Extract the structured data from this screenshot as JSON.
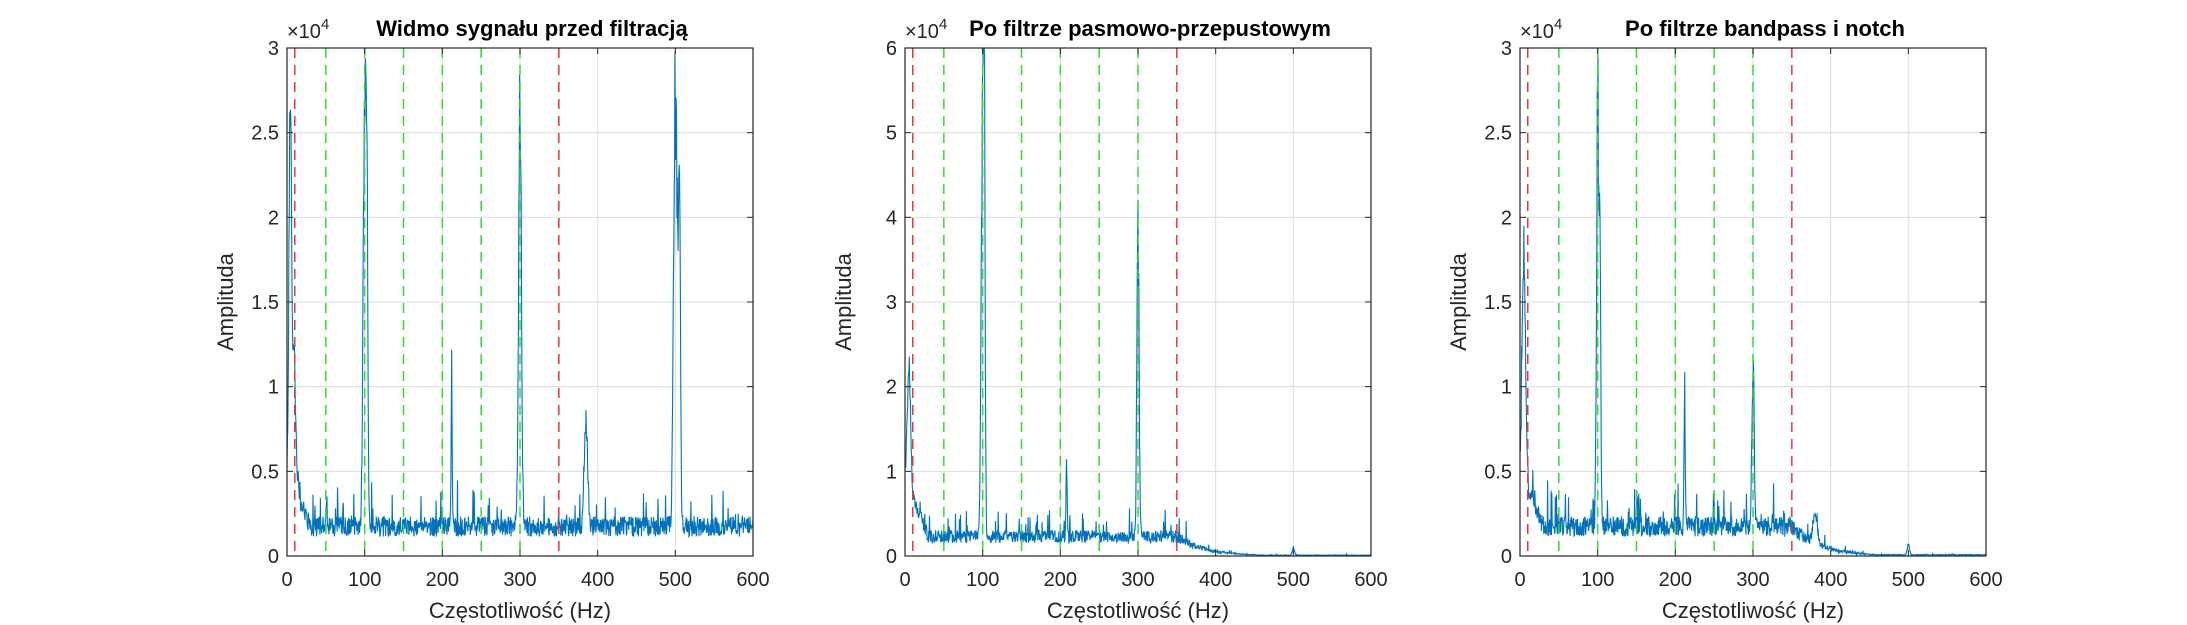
{
  "colors": {
    "signal": "#0072BD",
    "band_edge": "#E8333A",
    "harmonic": "#2DDC2D",
    "grid": "#DCDCDC",
    "axis": "#262626"
  },
  "chart_data": [
    {
      "type": "line",
      "title": "Widmo sygnału przed filtracją",
      "xlabel": "Częstotliwość (Hz)",
      "ylabel": "Amplituda",
      "y_exponent_label": "×10",
      "y_exponent": "4",
      "xlim": [
        0,
        600
      ],
      "ylim": [
        0,
        3
      ],
      "y_scale": 10000,
      "xticks": [
        "0",
        "100",
        "200",
        "300",
        "400",
        "500",
        "600"
      ],
      "yticks": [
        "0",
        "0.5",
        "1",
        "1.5",
        "2",
        "2.5",
        "3"
      ],
      "grid": true,
      "red_lines_x": [
        10,
        350
      ],
      "green_lines_x": [
        50,
        100,
        150,
        200,
        250,
        300
      ],
      "noise_floor": 0.15,
      "noise_amp": 0.12,
      "rolloff_above": null,
      "peaks": [
        {
          "x": 4,
          "y": 2.2,
          "w": 2
        },
        {
          "x": 8,
          "y": 1.0,
          "w": 4
        },
        {
          "x": 100,
          "y": 3.0,
          "w": 2.5
        },
        {
          "x": 103,
          "y": 2.1,
          "w": 1.5
        },
        {
          "x": 212,
          "y": 1.05,
          "w": 1
        },
        {
          "x": 300,
          "y": 3.0,
          "w": 2.5
        },
        {
          "x": 385,
          "y": 0.7,
          "w": 3
        },
        {
          "x": 500,
          "y": 3.0,
          "w": 3
        },
        {
          "x": 505,
          "y": 2.3,
          "w": 2
        }
      ]
    },
    {
      "type": "line",
      "title": "Po filtrze pasmowo-przepustowym",
      "xlabel": "Częstotliwość (Hz)",
      "ylabel": "Amplituda",
      "y_exponent_label": "×10",
      "y_exponent": "4",
      "xlim": [
        0,
        600
      ],
      "ylim": [
        0,
        6
      ],
      "y_scale": 10000,
      "xticks": [
        "0",
        "100",
        "200",
        "300",
        "400",
        "500",
        "600"
      ],
      "yticks": [
        "0",
        "1",
        "2",
        "3",
        "4",
        "5",
        "6"
      ],
      "grid": true,
      "red_lines_x": [
        10,
        350
      ],
      "green_lines_x": [
        50,
        100,
        150,
        200,
        250,
        300
      ],
      "noise_floor": 0.2,
      "noise_amp": 0.15,
      "rolloff_above": 350,
      "peaks": [
        {
          "x": 5,
          "y": 1.6,
          "w": 3
        },
        {
          "x": 100,
          "y": 5.6,
          "w": 2.5
        },
        {
          "x": 102,
          "y": 4.2,
          "w": 1.5
        },
        {
          "x": 208,
          "y": 1.05,
          "w": 1
        },
        {
          "x": 300,
          "y": 4.1,
          "w": 2
        },
        {
          "x": 500,
          "y": 0.1,
          "w": 2
        }
      ]
    },
    {
      "type": "line",
      "title": "Po filtrze bandpass i notch",
      "xlabel": "Częstotliwość (Hz)",
      "ylabel": "Amplituda",
      "y_exponent_label": "×10",
      "y_exponent": "4",
      "xlim": [
        0,
        600
      ],
      "ylim": [
        0,
        3
      ],
      "y_scale": 10000,
      "xticks": [
        "0",
        "100",
        "200",
        "300",
        "400",
        "500",
        "600"
      ],
      "yticks": [
        "0",
        "0.5",
        "1",
        "1.5",
        "2",
        "2.5",
        "3"
      ],
      "grid": true,
      "red_lines_x": [
        10,
        350
      ],
      "green_lines_x": [
        50,
        100,
        150,
        200,
        250,
        300
      ],
      "noise_floor": 0.15,
      "noise_amp": 0.12,
      "rolloff_above": 350,
      "peaks": [
        {
          "x": 5,
          "y": 1.5,
          "w": 3
        },
        {
          "x": 100,
          "y": 2.75,
          "w": 2
        },
        {
          "x": 103,
          "y": 1.7,
          "w": 1.5
        },
        {
          "x": 212,
          "y": 1.05,
          "w": 1
        },
        {
          "x": 300,
          "y": 1.1,
          "w": 2
        },
        {
          "x": 380,
          "y": 0.2,
          "w": 4
        },
        {
          "x": 500,
          "y": 0.07,
          "w": 2
        }
      ]
    }
  ]
}
